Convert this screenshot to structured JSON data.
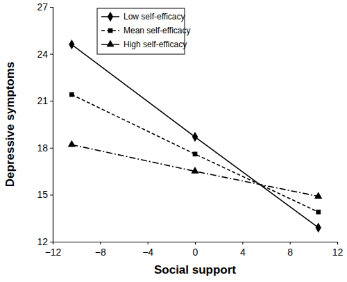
{
  "chart_data": {
    "type": "line",
    "x_label": "Social support",
    "y_label": "Depressive symptoms",
    "x": [
      -10.4,
      0,
      10.4
    ],
    "series": [
      {
        "name": "Low self-efficacy",
        "color": "#000000",
        "marker": "diamond",
        "line_style": "solid",
        "values": [
          24.6,
          18.7,
          12.9
        ]
      },
      {
        "name": "Mean self-efficacy",
        "color": "#000000",
        "marker": "square",
        "line_style": "dashed",
        "values": [
          21.4,
          17.6,
          13.9
        ]
      },
      {
        "name": "High self-efficacy",
        "color": "#000000",
        "marker": "triangle",
        "line_style": "dashdot",
        "values": [
          18.2,
          16.5,
          14.9
        ]
      }
    ],
    "xlim": [
      -12,
      12
    ],
    "xticks": [
      {
        "value": -12,
        "label": "−12"
      },
      {
        "value": -8,
        "label": "−8"
      },
      {
        "value": -4,
        "label": "−4"
      },
      0,
      4,
      8,
      12
    ],
    "ylim": [
      12,
      27
    ],
    "yticks": [
      12,
      15,
      18,
      21,
      24,
      27
    ],
    "grid": false,
    "legend": "upper left"
  }
}
